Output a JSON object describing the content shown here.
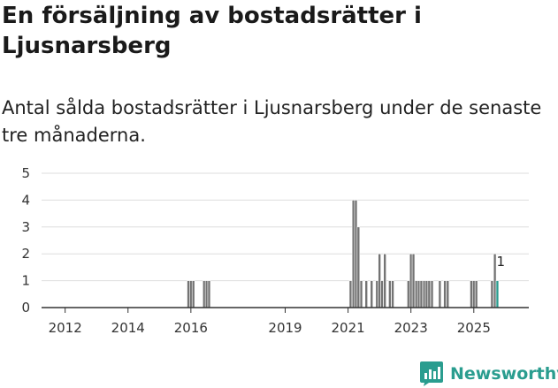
{
  "header": {
    "title": "En försäljning av bostadsrätter i Ljusnarsberg",
    "subtitle": "Antal sålda bostadsrätter i Ljusnarsberg under de senaste tre månaderna."
  },
  "brand": {
    "name": "Newsworthy",
    "icon": "bar-chart-logo-icon",
    "color": "#2a9d8f"
  },
  "chart_data": {
    "type": "bar",
    "title": "",
    "xlabel": "",
    "ylabel": "",
    "ylim": [
      0,
      5
    ],
    "yticks": [
      "0",
      "1",
      "2",
      "3",
      "4",
      "5"
    ],
    "xlim": [
      2011.25,
      2026.75
    ],
    "xticks": [
      {
        "label": "2012",
        "value": 2012.0
      },
      {
        "label": "2014",
        "value": 2014.0
      },
      {
        "label": "2016",
        "value": 2016.0
      },
      {
        "label": "2019",
        "value": 2019.0
      },
      {
        "label": "2021",
        "value": 2021.0
      },
      {
        "label": "2023",
        "value": 2023.0
      },
      {
        "label": "2025",
        "value": 2025.0
      }
    ],
    "bar_width_years": 0.083,
    "bar_color": "#737373",
    "highlight_color": "#2a9d8f",
    "series": [
      {
        "name": "Antal sålda bostadsrätter",
        "points": [
          {
            "x": 2015.92,
            "y": 1
          },
          {
            "x": 2016.0,
            "y": 1
          },
          {
            "x": 2016.08,
            "y": 1
          },
          {
            "x": 2016.42,
            "y": 1
          },
          {
            "x": 2016.5,
            "y": 1
          },
          {
            "x": 2016.58,
            "y": 1
          },
          {
            "x": 2021.08,
            "y": 1
          },
          {
            "x": 2021.17,
            "y": 4
          },
          {
            "x": 2021.25,
            "y": 4
          },
          {
            "x": 2021.33,
            "y": 3
          },
          {
            "x": 2021.42,
            "y": 1
          },
          {
            "x": 2021.58,
            "y": 1
          },
          {
            "x": 2021.75,
            "y": 1
          },
          {
            "x": 2021.92,
            "y": 1
          },
          {
            "x": 2022.0,
            "y": 2
          },
          {
            "x": 2022.08,
            "y": 1
          },
          {
            "x": 2022.17,
            "y": 2
          },
          {
            "x": 2022.33,
            "y": 1
          },
          {
            "x": 2022.42,
            "y": 1
          },
          {
            "x": 2022.92,
            "y": 1
          },
          {
            "x": 2023.0,
            "y": 2
          },
          {
            "x": 2023.08,
            "y": 2
          },
          {
            "x": 2023.17,
            "y": 1
          },
          {
            "x": 2023.25,
            "y": 1
          },
          {
            "x": 2023.33,
            "y": 1
          },
          {
            "x": 2023.42,
            "y": 1
          },
          {
            "x": 2023.5,
            "y": 1
          },
          {
            "x": 2023.58,
            "y": 1
          },
          {
            "x": 2023.67,
            "y": 1
          },
          {
            "x": 2023.92,
            "y": 1
          },
          {
            "x": 2024.08,
            "y": 1
          },
          {
            "x": 2024.17,
            "y": 1
          },
          {
            "x": 2024.92,
            "y": 1
          },
          {
            "x": 2025.0,
            "y": 1
          },
          {
            "x": 2025.08,
            "y": 1
          },
          {
            "x": 2025.58,
            "y": 1
          },
          {
            "x": 2025.67,
            "y": 2
          },
          {
            "x": 2025.75,
            "y": 1,
            "highlight": true
          }
        ]
      }
    ],
    "annotations": [
      {
        "x": 2025.83,
        "y": 2,
        "text": "1"
      }
    ]
  }
}
